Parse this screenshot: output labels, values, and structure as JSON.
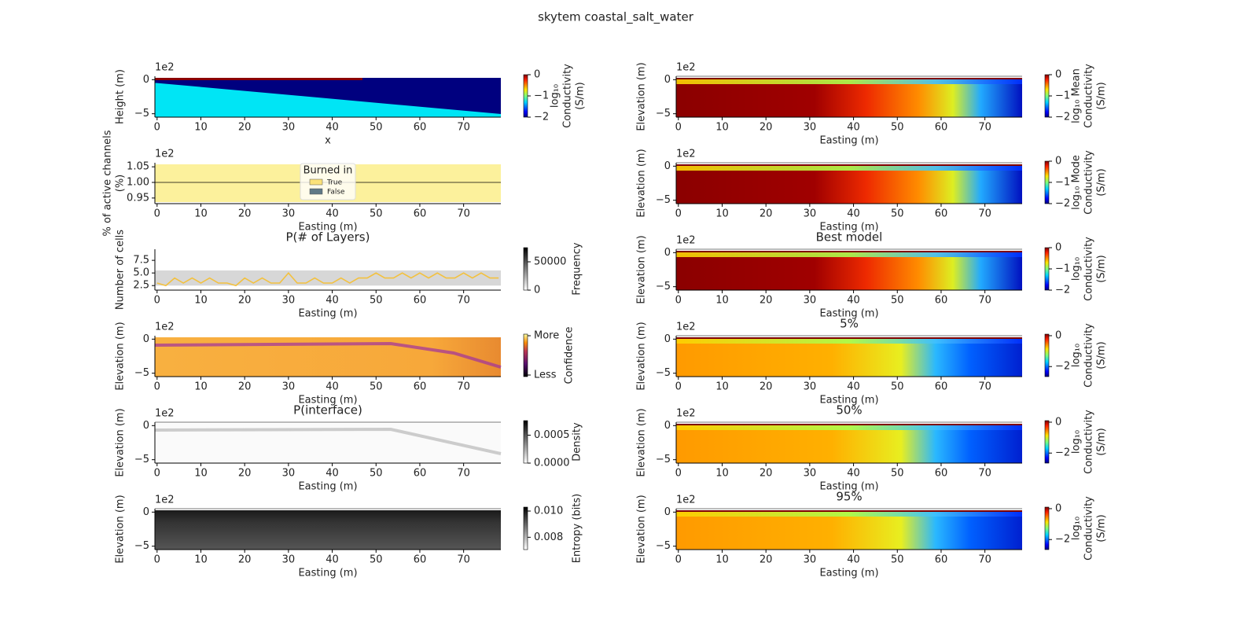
{
  "title": "skytem coastal_salt_water",
  "chart_data": [
    {
      "type": "heatmap",
      "colormap": "jet",
      "x_label": "x",
      "y_label": "Height (m)",
      "offset_label": "1e2",
      "xlim": [
        -0.5,
        78.5
      ],
      "ylim": [
        -5.5,
        0.5
      ],
      "xticks": [
        0,
        10,
        20,
        30,
        40,
        50,
        60,
        70
      ],
      "yticks": [
        {
          "value": -5,
          "label": "−5"
        },
        0
      ],
      "colorbar": {
        "label": [
          "log₁₀",
          "Conductivity",
          "(S/m)"
        ],
        "lim": [
          -2,
          0
        ],
        "ticks": [
          {
            "value": -2,
            "label": "−2"
          },
          {
            "value": -1,
            "label": "−1"
          },
          0
        ]
      }
    },
    {
      "type": "band",
      "x_label": "Easting (m)",
      "y_label": [
        "% of active channels",
        "(%)"
      ],
      "offset_label": "1e2",
      "xlim": [
        -0.5,
        78.5
      ],
      "ylim": [
        0.932,
        1.063
      ],
      "xticks": [
        0,
        10,
        20,
        30,
        40,
        50,
        60,
        70
      ],
      "yticks": [
        0.95,
        {
          "value": 1,
          "label": "1.00"
        },
        1.05
      ],
      "reference_line": 1,
      "fill": "#fcf19c",
      "legend": {
        "title": "Burned in",
        "entries": [
          {
            "name": "True",
            "color": "#fbe27a"
          },
          {
            "name": "False",
            "color": "#5f7886"
          }
        ]
      }
    },
    {
      "type": "line",
      "title": "P(# of Layers)",
      "x_label": "Easting (m)",
      "y_label": "Number of cells",
      "colormap": "gray_r",
      "xlim": [
        -0.5,
        78.5
      ],
      "ylim": [
        1.6,
        9.7
      ],
      "xticks": [
        0,
        10,
        20,
        30,
        40,
        50,
        60,
        70
      ],
      "yticks": [
        2.5,
        {
          "value": 5,
          "label": "5.0"
        },
        7.5
      ],
      "x": [
        0,
        2,
        4,
        6,
        8,
        10,
        12,
        14,
        16,
        18,
        20,
        22,
        24,
        26,
        28,
        30,
        32,
        34,
        36,
        38,
        40,
        42,
        44,
        46,
        48,
        50,
        52,
        54,
        56,
        58,
        60,
        62,
        64,
        66,
        68,
        70,
        72,
        74,
        76,
        78
      ],
      "values": [
        3,
        2.5,
        4,
        3,
        4,
        3,
        4,
        3,
        3,
        2.5,
        4,
        3,
        4,
        3,
        3,
        5,
        3,
        3,
        4,
        3,
        3,
        4,
        3,
        4,
        4,
        5,
        4,
        4,
        5,
        4,
        5,
        4,
        5,
        4,
        4,
        5,
        4,
        5,
        4,
        4
      ],
      "color": "#f3c13e",
      "colorbar": {
        "label": "Frequency",
        "lim": [
          0,
          75000
        ],
        "ticks": [
          0,
          50000
        ]
      }
    },
    {
      "type": "heatmap",
      "colormap": "inferno",
      "x_label": "Easting (m)",
      "y_label": "Elevation (m)",
      "offset_label": "1e2",
      "xlim": [
        -0.5,
        78.5
      ],
      "ylim": [
        -5.5,
        0.5
      ],
      "xticks": [
        0,
        10,
        20,
        30,
        40,
        50,
        60,
        70
      ],
      "yticks": [
        {
          "value": -5,
          "label": "−5"
        },
        0
      ],
      "colorbar": {
        "label": "Confidence",
        "tick_labels": [
          "More",
          "Less"
        ]
      }
    },
    {
      "type": "heatmap",
      "colormap": "gray_r",
      "title": "P(interface)",
      "x_label": "Easting (m)",
      "y_label": "Elevation (m)",
      "offset_label": "1e2",
      "xlim": [
        -0.5,
        78.5
      ],
      "ylim": [
        -5.5,
        0.5
      ],
      "xticks": [
        0,
        10,
        20,
        30,
        40,
        50,
        60,
        70
      ],
      "yticks": [
        {
          "value": -5,
          "label": "−5"
        },
        0
      ],
      "colorbar": {
        "label": "Density",
        "lim": [
          0,
          0.00076
        ],
        "ticks": [
          {
            "value": 0,
            "label": "0.0000"
          },
          0.0005
        ]
      }
    },
    {
      "type": "heatmap",
      "colormap": "gray",
      "x_label": "Easting (m)",
      "y_label": "Elevation (m)",
      "offset_label": "1e2",
      "xlim": [
        -0.5,
        78.5
      ],
      "ylim": [
        -5.5,
        0.5
      ],
      "xticks": [
        0,
        10,
        20,
        30,
        40,
        50,
        60,
        70
      ],
      "yticks": [
        {
          "value": -5,
          "label": "−5"
        },
        0
      ],
      "colorbar": {
        "label": "Entropy (bits)",
        "lim": [
          0.00706,
          0.0103
        ],
        "ticks": [
          0.008,
          {
            "value": 0.01,
            "label": "0.010"
          }
        ]
      }
    },
    {
      "type": "heatmap",
      "colormap": "jet",
      "x_label": "Easting (m)",
      "y_label": "Elevation (m)",
      "offset_label": "1e2",
      "xlim": [
        -0.5,
        78.5
      ],
      "ylim": [
        -5.5,
        0.5
      ],
      "xticks": [
        0,
        10,
        20,
        30,
        40,
        50,
        60,
        70
      ],
      "yticks": [
        {
          "value": -5,
          "label": "−5"
        },
        0
      ],
      "colorbar": {
        "label": [
          "log₁₀ Mean",
          "Conductivity",
          "(S/m)"
        ],
        "lim": [
          -2,
          0
        ],
        "ticks": [
          {
            "value": -2,
            "label": "−2"
          },
          {
            "value": -1,
            "label": "−1"
          },
          0
        ]
      }
    },
    {
      "type": "heatmap",
      "colormap": "jet",
      "x_label": "Easting (m)",
      "y_label": "Elevation (m)",
      "offset_label": "1e2",
      "xlim": [
        -0.5,
        78.5
      ],
      "ylim": [
        -5.5,
        0.5
      ],
      "xticks": [
        0,
        10,
        20,
        30,
        40,
        50,
        60,
        70
      ],
      "yticks": [
        {
          "value": -5,
          "label": "−5"
        },
        0
      ],
      "colorbar": {
        "label": [
          "log₁₀ Mode",
          "Conductivity",
          "(S/m)"
        ],
        "lim": [
          -2,
          0
        ],
        "ticks": [
          {
            "value": -2,
            "label": "−2"
          },
          {
            "value": -1,
            "label": "−1"
          },
          0
        ]
      }
    },
    {
      "type": "heatmap",
      "colormap": "jet",
      "title": "Best model",
      "x_label": "Easting (m)",
      "y_label": "Elevation (m)",
      "offset_label": "1e2",
      "xlim": [
        -0.5,
        78.5
      ],
      "ylim": [
        -5.5,
        0.5
      ],
      "xticks": [
        0,
        10,
        20,
        30,
        40,
        50,
        60,
        70
      ],
      "yticks": [
        {
          "value": -5,
          "label": "−5"
        },
        0
      ],
      "colorbar": {
        "label": [
          "log₁₀",
          "Conductivity",
          "(S/m)"
        ],
        "lim": [
          -2,
          0
        ],
        "ticks": [
          {
            "value": -2,
            "label": "−2"
          },
          {
            "value": -1,
            "label": "−1"
          },
          0
        ]
      }
    },
    {
      "type": "heatmap",
      "colormap": "jet",
      "title": "5%",
      "x_label": "Easting (m)",
      "y_label": "Elevation (m)",
      "offset_label": "1e2",
      "xlim": [
        -0.5,
        78.5
      ],
      "ylim": [
        -5.5,
        0.5
      ],
      "xticks": [
        0,
        10,
        20,
        30,
        40,
        50,
        60,
        70
      ],
      "yticks": [
        {
          "value": -5,
          "label": "−5"
        },
        0
      ],
      "colorbar": {
        "label": [
          "log₁₀",
          "Conductivity",
          "(S/m)"
        ],
        "lim": [
          -2.65,
          0.1
        ],
        "ticks": [
          {
            "value": -2,
            "label": "−2"
          },
          0
        ]
      }
    },
    {
      "type": "heatmap",
      "colormap": "jet",
      "title": "50%",
      "x_label": "Easting (m)",
      "y_label": "Elevation (m)",
      "offset_label": "1e2",
      "xlim": [
        -0.5,
        78.5
      ],
      "ylim": [
        -5.5,
        0.5
      ],
      "xticks": [
        0,
        10,
        20,
        30,
        40,
        50,
        60,
        70
      ],
      "yticks": [
        {
          "value": -5,
          "label": "−5"
        },
        0
      ],
      "colorbar": {
        "label": [
          "log₁₀",
          "Conductivity",
          "(S/m)"
        ],
        "lim": [
          -2.65,
          0.1
        ],
        "ticks": [
          {
            "value": -2,
            "label": "−2"
          },
          0
        ]
      }
    },
    {
      "type": "heatmap",
      "colormap": "jet",
      "title": "95%",
      "x_label": "Easting (m)",
      "y_label": "Elevation (m)",
      "offset_label": "1e2",
      "xlim": [
        -0.5,
        78.5
      ],
      "ylim": [
        -5.5,
        0.5
      ],
      "xticks": [
        0,
        10,
        20,
        30,
        40,
        50,
        60,
        70
      ],
      "yticks": [
        {
          "value": -5,
          "label": "−5"
        },
        0
      ],
      "colorbar": {
        "label": [
          "log₁₀",
          "Conductivity",
          "(S/m)"
        ],
        "lim": [
          -2.65,
          0.1
        ],
        "ticks": [
          {
            "value": -2,
            "label": "−2"
          },
          0
        ]
      }
    }
  ]
}
